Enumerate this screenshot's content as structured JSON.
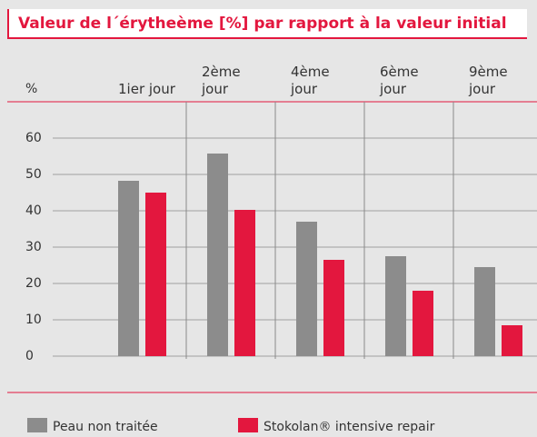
{
  "chart_data": {
    "type": "bar",
    "title": "Valeur de l´érytheème [%] par rapport à la valeur initial",
    "y_label": "%",
    "categories": [
      "1ier jour",
      "2ème jour",
      "4ème jour",
      "6ème jour",
      "9ème jour"
    ],
    "series": [
      {
        "name": "Peau non traitée",
        "color": "#8c8c8c",
        "values": [
          48.25,
          55.75,
          37,
          27.5,
          24.5
        ]
      },
      {
        "name": "Stokolan® intensive repair",
        "color": "#e3173e",
        "values": [
          45,
          40.25,
          26.5,
          18,
          8.5
        ]
      }
    ],
    "ylim": [
      0,
      60
    ],
    "yticks": [
      0,
      10,
      20,
      30,
      40,
      50,
      60
    ],
    "grid": true
  }
}
